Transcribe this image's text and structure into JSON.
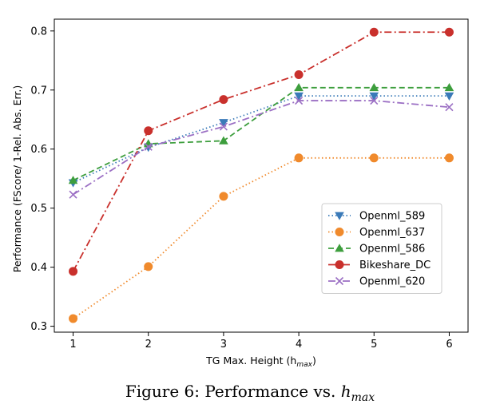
{
  "chart_data": {
    "type": "line",
    "x": [
      1,
      2,
      3,
      4,
      5,
      6
    ],
    "xlabel": "TG Max. Height (h",
    "xlabel_sub": "max",
    "xlabel_close": ")",
    "ylabel": "Performance (FScore/ 1-Rel. Abs. Err.)",
    "xlim": [
      0.75,
      6.25
    ],
    "ylim": [
      0.29,
      0.82
    ],
    "xticks": [
      1,
      2,
      3,
      4,
      5,
      6
    ],
    "yticks": [
      0.3,
      0.4,
      0.5,
      0.6,
      0.7,
      0.8
    ],
    "ytick_labels": [
      "0.3",
      "0.4",
      "0.5",
      "0.6",
      "0.7",
      "0.8"
    ],
    "grid": false,
    "legend_position": "lower-right",
    "series": [
      {
        "name": "Openml_589",
        "color": "#3a7ab8",
        "dash": "dotted",
        "marker": "triangle-down",
        "values": [
          0.543,
          0.603,
          0.645,
          0.69,
          0.69,
          0.69
        ]
      },
      {
        "name": "Openml_637",
        "color": "#f08a2c",
        "dash": "dotted",
        "marker": "circle",
        "values": [
          0.313,
          0.401,
          0.52,
          0.585,
          0.585,
          0.585
        ]
      },
      {
        "name": "Openml_586",
        "color": "#3d9e3d",
        "dash": "dashed",
        "marker": "triangle-up",
        "values": [
          0.547,
          0.609,
          0.614,
          0.704,
          0.704,
          0.704
        ]
      },
      {
        "name": "Bikeshare_DC",
        "color": "#c9302c",
        "dash": "dashdot",
        "marker": "circle",
        "values": [
          0.393,
          0.631,
          0.684,
          0.726,
          0.798,
          0.798
        ]
      },
      {
        "name": "Openml_620",
        "color": "#9b6fc4",
        "dash": "dashdot",
        "marker": "x",
        "values": [
          0.523,
          0.604,
          0.638,
          0.682,
          0.682,
          0.671
        ]
      }
    ]
  },
  "caption": {
    "prefix": "Figure 6: Performance vs. ",
    "var": "h",
    "var_sub": "max"
  }
}
